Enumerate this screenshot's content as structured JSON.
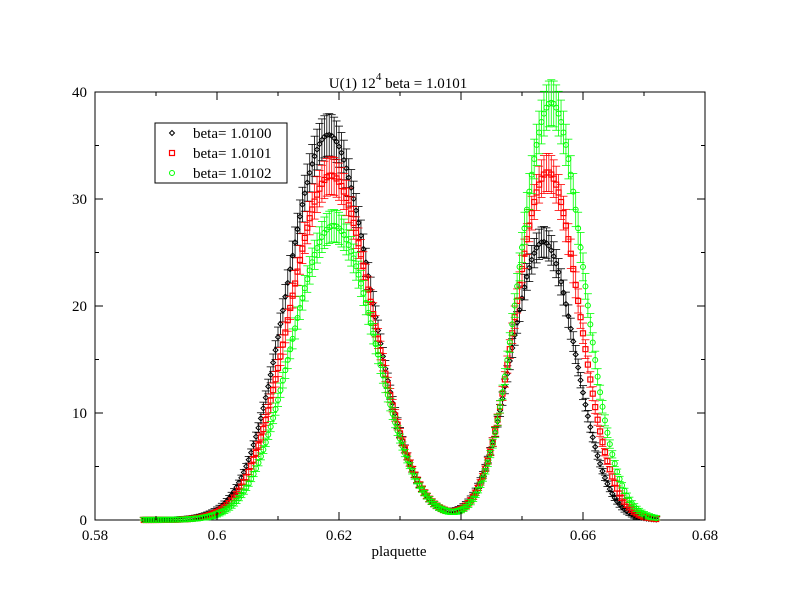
{
  "chart_data": {
    "type": "scatter",
    "title_main": "U(1) 12",
    "title_sup": "4",
    "title_rest": " beta = 1.0101",
    "xlabel": "plaquette",
    "ylabel": "",
    "xlim": [
      0.58,
      0.68
    ],
    "ylim": [
      0,
      40
    ],
    "x_ticks": [
      "0.58",
      "0.6",
      "0.62",
      "0.64",
      "0.66",
      "0.68"
    ],
    "y_ticks": [
      "0",
      "10",
      "20",
      "30",
      "40"
    ],
    "legend_position": "top-left",
    "series": [
      {
        "name": "beta= 1.0100",
        "color": "#000000",
        "marker": "diamond",
        "peak1": {
          "center": 0.6183,
          "height": 36.0,
          "width": 0.0068
        },
        "peak2": {
          "center": 0.6535,
          "height": 26.0,
          "width": 0.0052
        },
        "error_fraction": 0.055
      },
      {
        "name": "beta= 1.0101",
        "color": "#ff0000",
        "marker": "square",
        "peak1": {
          "center": 0.6187,
          "height": 32.2,
          "width": 0.0068
        },
        "peak2": {
          "center": 0.6542,
          "height": 32.5,
          "width": 0.0052
        },
        "error_fraction": 0.055
      },
      {
        "name": "beta= 1.0102",
        "color": "#00ff00",
        "marker": "circle",
        "peak1": {
          "center": 0.6191,
          "height": 27.5,
          "width": 0.0068
        },
        "peak2": {
          "center": 0.6548,
          "height": 39.0,
          "width": 0.0052
        },
        "error_fraction": 0.055
      }
    ],
    "x_range_data": [
      0.588,
      0.672
    ],
    "x_step": 0.0004
  }
}
